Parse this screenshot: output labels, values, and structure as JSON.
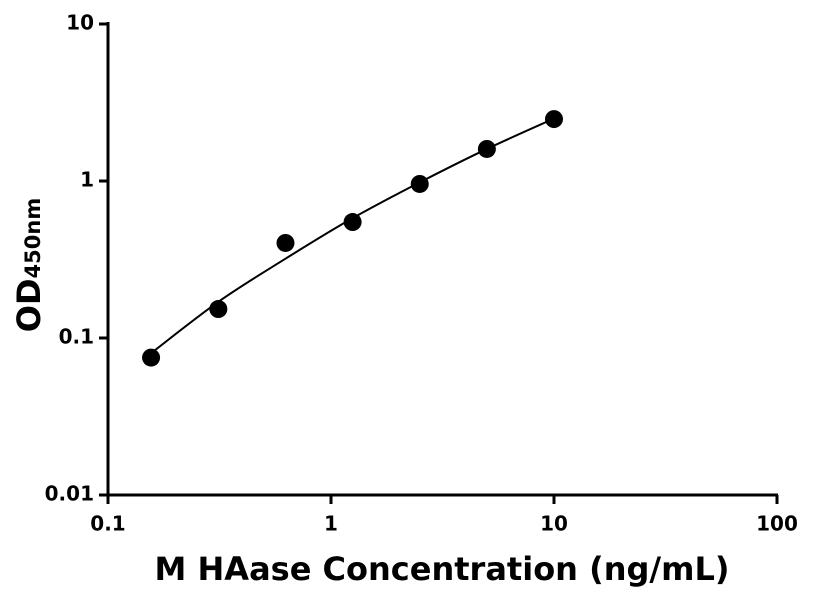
{
  "chart_data": {
    "type": "scatter",
    "x_label": "M HAase Concentration (ng/mL)",
    "y_label": "OD",
    "y_label_subscript": "450nm",
    "x_log": true,
    "y_log": true,
    "xlim": [
      0.1,
      100
    ],
    "xticks": [
      0.1,
      1,
      10,
      100
    ],
    "ylim": [
      0.01,
      10
    ],
    "yticks": [
      0.01,
      0.1,
      1,
      10
    ],
    "series": [
      {
        "color": "#000000",
        "x": [
          0.156,
          0.3125,
          0.625,
          1.25,
          2.5,
          5,
          10
        ],
        "values": [
          0.075,
          0.153,
          0.403,
          0.548,
          0.957,
          1.6,
          2.48
        ]
      }
    ],
    "fit": {
      "color": "#000000",
      "x": [
        0.156,
        0.3125,
        0.625,
        1.25,
        2.5,
        5,
        10
      ],
      "values": [
        0.08,
        0.17,
        0.32,
        0.58,
        0.98,
        1.6,
        2.5
      ]
    }
  }
}
